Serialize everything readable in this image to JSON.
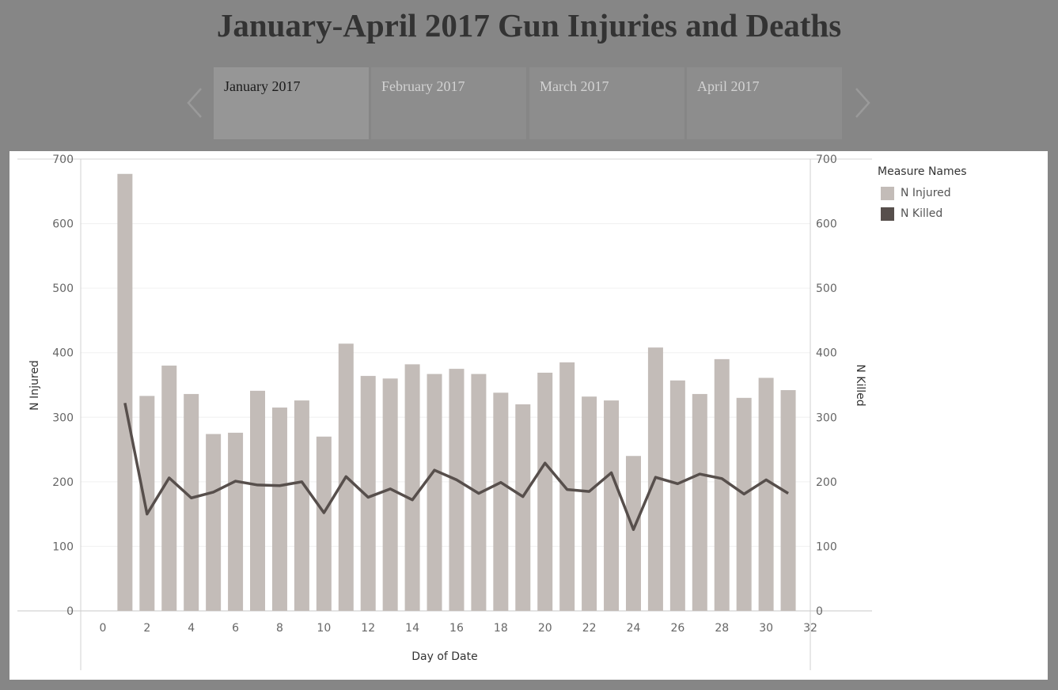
{
  "title": "January-April 2017 Gun Injuries and Deaths",
  "tabs": [
    {
      "label": "January 2017",
      "active": true
    },
    {
      "label": "February 2017",
      "active": false
    },
    {
      "label": "March 2017",
      "active": false
    },
    {
      "label": "April 2017",
      "active": false
    }
  ],
  "legend": {
    "title": "Measure Names",
    "items": [
      {
        "label": "N Injured",
        "color": "#c3bcb8"
      },
      {
        "label": "N Killed",
        "color": "#574f4c"
      }
    ]
  },
  "chart_data": {
    "type": "bar",
    "xlabel": "Day of Date",
    "ylabel": "N Injured",
    "y2label": "N Killed",
    "xlim": [
      -1,
      32
    ],
    "ylim": [
      0,
      700
    ],
    "y2lim": [
      0,
      700
    ],
    "x_ticks": [
      0,
      2,
      4,
      6,
      8,
      10,
      12,
      14,
      16,
      18,
      20,
      22,
      24,
      26,
      28,
      30,
      32
    ],
    "y_ticks": [
      0,
      100,
      200,
      300,
      400,
      500,
      600,
      700
    ],
    "grid": true,
    "legend_position": "right",
    "x": [
      1,
      2,
      3,
      4,
      5,
      6,
      7,
      8,
      9,
      10,
      11,
      12,
      13,
      14,
      15,
      16,
      17,
      18,
      19,
      20,
      21,
      22,
      23,
      24,
      25,
      26,
      27,
      28,
      29,
      30,
      31
    ],
    "series": [
      {
        "name": "N Injured",
        "type": "bar",
        "axis": "left",
        "values": [
          677,
          333,
          380,
          336,
          274,
          276,
          341,
          315,
          326,
          270,
          414,
          364,
          360,
          382,
          367,
          375,
          367,
          338,
          320,
          369,
          385,
          332,
          326,
          240,
          408,
          357,
          336,
          390,
          330,
          361,
          342
        ]
      },
      {
        "name": "N Killed",
        "type": "line",
        "axis": "right",
        "values": [
          322,
          150,
          206,
          175,
          184,
          201,
          195,
          194,
          200,
          152,
          208,
          176,
          189,
          172,
          218,
          203,
          182,
          199,
          177,
          229,
          188,
          185,
          214,
          126,
          207,
          197,
          212,
          205,
          181,
          203,
          182
        ]
      }
    ]
  }
}
